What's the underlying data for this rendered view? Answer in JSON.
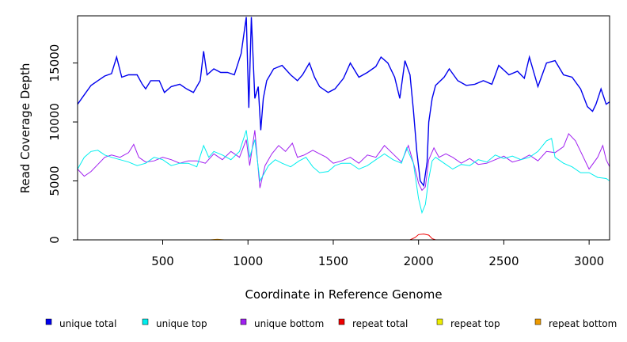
{
  "chart_data": {
    "type": "line",
    "title": "",
    "xlabel": "Coordinate in Reference Genome",
    "ylabel": "Read Coverage Depth",
    "xlim": [
      1,
      3120
    ],
    "ylim": [
      0,
      19000
    ],
    "x_ticks": [
      500,
      1000,
      1500,
      2000,
      2500,
      3000
    ],
    "y_ticks": [
      0,
      5000,
      10000,
      15000
    ],
    "grid": false,
    "legend_position": "bottom",
    "series": [
      {
        "name": "unique total",
        "color": "#0000ee",
        "points": [
          [
            1,
            11500
          ],
          [
            40,
            12300
          ],
          [
            80,
            13100
          ],
          [
            120,
            13500
          ],
          [
            160,
            13900
          ],
          [
            200,
            14100
          ],
          [
            230,
            15500
          ],
          [
            260,
            13800
          ],
          [
            300,
            14000
          ],
          [
            350,
            14000
          ],
          [
            380,
            13200
          ],
          [
            400,
            12800
          ],
          [
            430,
            13500
          ],
          [
            480,
            13500
          ],
          [
            510,
            12500
          ],
          [
            550,
            13000
          ],
          [
            600,
            13200
          ],
          [
            640,
            12800
          ],
          [
            680,
            12500
          ],
          [
            720,
            13500
          ],
          [
            740,
            16000
          ],
          [
            760,
            14000
          ],
          [
            800,
            14500
          ],
          [
            840,
            14200
          ],
          [
            880,
            14200
          ],
          [
            920,
            14000
          ],
          [
            960,
            15800
          ],
          [
            990,
            18900
          ],
          [
            1005,
            11200
          ],
          [
            1020,
            18900
          ],
          [
            1040,
            12000
          ],
          [
            1060,
            13000
          ],
          [
            1075,
            9300
          ],
          [
            1090,
            12000
          ],
          [
            1110,
            13500
          ],
          [
            1150,
            14500
          ],
          [
            1200,
            14800
          ],
          [
            1250,
            14000
          ],
          [
            1290,
            13500
          ],
          [
            1320,
            14000
          ],
          [
            1360,
            15000
          ],
          [
            1390,
            13800
          ],
          [
            1420,
            13000
          ],
          [
            1470,
            12500
          ],
          [
            1510,
            12800
          ],
          [
            1560,
            13700
          ],
          [
            1600,
            15000
          ],
          [
            1650,
            13800
          ],
          [
            1700,
            14200
          ],
          [
            1750,
            14700
          ],
          [
            1780,
            15500
          ],
          [
            1820,
            15000
          ],
          [
            1860,
            13800
          ],
          [
            1890,
            12000
          ],
          [
            1920,
            15200
          ],
          [
            1950,
            14000
          ],
          [
            1970,
            11000
          ],
          [
            1990,
            7500
          ],
          [
            2010,
            5000
          ],
          [
            2030,
            4600
          ],
          [
            2050,
            6600
          ],
          [
            2060,
            10000
          ],
          [
            2080,
            12000
          ],
          [
            2100,
            13100
          ],
          [
            2150,
            13800
          ],
          [
            2180,
            14500
          ],
          [
            2230,
            13500
          ],
          [
            2280,
            13100
          ],
          [
            2330,
            13200
          ],
          [
            2380,
            13500
          ],
          [
            2430,
            13200
          ],
          [
            2470,
            14800
          ],
          [
            2530,
            14000
          ],
          [
            2580,
            14300
          ],
          [
            2620,
            13700
          ],
          [
            2650,
            15500
          ],
          [
            2700,
            13000
          ],
          [
            2750,
            15000
          ],
          [
            2800,
            15200
          ],
          [
            2850,
            14000
          ],
          [
            2900,
            13800
          ],
          [
            2950,
            12800
          ],
          [
            2990,
            11300
          ],
          [
            3020,
            10900
          ],
          [
            3040,
            11500
          ],
          [
            3070,
            12800
          ],
          [
            3100,
            11500
          ],
          [
            3120,
            11700
          ]
        ]
      },
      {
        "name": "unique top",
        "color": "#00eeee",
        "points": [
          [
            1,
            6000
          ],
          [
            40,
            7000
          ],
          [
            80,
            7500
          ],
          [
            120,
            7600
          ],
          [
            160,
            7200
          ],
          [
            200,
            7000
          ],
          [
            250,
            6800
          ],
          [
            300,
            6600
          ],
          [
            350,
            6300
          ],
          [
            400,
            6500
          ],
          [
            450,
            7000
          ],
          [
            500,
            6800
          ],
          [
            550,
            6300
          ],
          [
            600,
            6500
          ],
          [
            650,
            6500
          ],
          [
            700,
            6200
          ],
          [
            740,
            8000
          ],
          [
            770,
            7000
          ],
          [
            800,
            7500
          ],
          [
            850,
            7200
          ],
          [
            900,
            6800
          ],
          [
            950,
            7500
          ],
          [
            990,
            9300
          ],
          [
            1010,
            7000
          ],
          [
            1040,
            8500
          ],
          [
            1070,
            5000
          ],
          [
            1090,
            5500
          ],
          [
            1120,
            6300
          ],
          [
            1160,
            6800
          ],
          [
            1200,
            6500
          ],
          [
            1250,
            6200
          ],
          [
            1300,
            6700
          ],
          [
            1340,
            7000
          ],
          [
            1380,
            6200
          ],
          [
            1420,
            5700
          ],
          [
            1470,
            5800
          ],
          [
            1510,
            6300
          ],
          [
            1550,
            6500
          ],
          [
            1600,
            6500
          ],
          [
            1650,
            6000
          ],
          [
            1700,
            6300
          ],
          [
            1750,
            6800
          ],
          [
            1800,
            7300
          ],
          [
            1850,
            6800
          ],
          [
            1900,
            6500
          ],
          [
            1930,
            7800
          ],
          [
            1970,
            6500
          ],
          [
            2000,
            3500
          ],
          [
            2020,
            2300
          ],
          [
            2040,
            3000
          ],
          [
            2060,
            5200
          ],
          [
            2080,
            6700
          ],
          [
            2100,
            7000
          ],
          [
            2150,
            6500
          ],
          [
            2200,
            6000
          ],
          [
            2250,
            6400
          ],
          [
            2300,
            6300
          ],
          [
            2350,
            6800
          ],
          [
            2400,
            6600
          ],
          [
            2450,
            7200
          ],
          [
            2500,
            6900
          ],
          [
            2550,
            7100
          ],
          [
            2600,
            6800
          ],
          [
            2650,
            7000
          ],
          [
            2700,
            7500
          ],
          [
            2750,
            8400
          ],
          [
            2780,
            8600
          ],
          [
            2800,
            7000
          ],
          [
            2850,
            6500
          ],
          [
            2900,
            6200
          ],
          [
            2950,
            5700
          ],
          [
            3000,
            5700
          ],
          [
            3050,
            5300
          ],
          [
            3100,
            5200
          ],
          [
            3120,
            5000
          ]
        ]
      },
      {
        "name": "unique bottom",
        "color": "#a020f0",
        "points": [
          [
            1,
            6000
          ],
          [
            40,
            5400
          ],
          [
            80,
            5800
          ],
          [
            120,
            6400
          ],
          [
            160,
            7000
          ],
          [
            200,
            7200
          ],
          [
            250,
            7000
          ],
          [
            300,
            7400
          ],
          [
            330,
            8100
          ],
          [
            360,
            7000
          ],
          [
            400,
            6600
          ],
          [
            450,
            6700
          ],
          [
            500,
            7000
          ],
          [
            550,
            6800
          ],
          [
            600,
            6500
          ],
          [
            650,
            6700
          ],
          [
            700,
            6700
          ],
          [
            750,
            6500
          ],
          [
            800,
            7300
          ],
          [
            850,
            6800
          ],
          [
            900,
            7500
          ],
          [
            950,
            7000
          ],
          [
            990,
            8500
          ],
          [
            1010,
            6300
          ],
          [
            1040,
            9300
          ],
          [
            1070,
            4400
          ],
          [
            1100,
            6300
          ],
          [
            1140,
            7300
          ],
          [
            1180,
            8000
          ],
          [
            1220,
            7500
          ],
          [
            1260,
            8200
          ],
          [
            1290,
            7000
          ],
          [
            1330,
            7200
          ],
          [
            1380,
            7600
          ],
          [
            1420,
            7300
          ],
          [
            1460,
            7000
          ],
          [
            1500,
            6500
          ],
          [
            1550,
            6700
          ],
          [
            1600,
            7000
          ],
          [
            1650,
            6500
          ],
          [
            1700,
            7200
          ],
          [
            1750,
            7000
          ],
          [
            1800,
            8000
          ],
          [
            1850,
            7300
          ],
          [
            1900,
            6600
          ],
          [
            1940,
            8000
          ],
          [
            1980,
            6000
          ],
          [
            2000,
            4800
          ],
          [
            2020,
            4200
          ],
          [
            2040,
            4500
          ],
          [
            2060,
            6800
          ],
          [
            2090,
            7800
          ],
          [
            2120,
            7000
          ],
          [
            2160,
            7300
          ],
          [
            2200,
            7000
          ],
          [
            2250,
            6500
          ],
          [
            2300,
            6900
          ],
          [
            2350,
            6400
          ],
          [
            2400,
            6500
          ],
          [
            2450,
            6800
          ],
          [
            2500,
            7100
          ],
          [
            2550,
            6600
          ],
          [
            2600,
            6800
          ],
          [
            2650,
            7200
          ],
          [
            2700,
            6700
          ],
          [
            2750,
            7500
          ],
          [
            2800,
            7400
          ],
          [
            2850,
            7900
          ],
          [
            2880,
            9000
          ],
          [
            2920,
            8400
          ],
          [
            2950,
            7500
          ],
          [
            3000,
            6000
          ],
          [
            3050,
            7000
          ],
          [
            3080,
            8000
          ],
          [
            3100,
            6800
          ],
          [
            3120,
            6200
          ]
        ]
      },
      {
        "name": "repeat total",
        "color": "#ee0000",
        "points": [
          [
            1,
            0
          ],
          [
            1950,
            0
          ],
          [
            1980,
            200
          ],
          [
            2000,
            450
          ],
          [
            2030,
            500
          ],
          [
            2060,
            400
          ],
          [
            2080,
            100
          ],
          [
            2100,
            0
          ],
          [
            3120,
            0
          ]
        ]
      },
      {
        "name": "repeat top",
        "color": "#eeee00",
        "points": [
          [
            1,
            0
          ],
          [
            3120,
            0
          ]
        ]
      },
      {
        "name": "repeat bottom",
        "color": "#ee9a00",
        "points": [
          [
            1,
            0
          ],
          [
            780,
            0
          ],
          [
            820,
            50
          ],
          [
            860,
            0
          ],
          [
            3120,
            0
          ]
        ]
      }
    ]
  }
}
